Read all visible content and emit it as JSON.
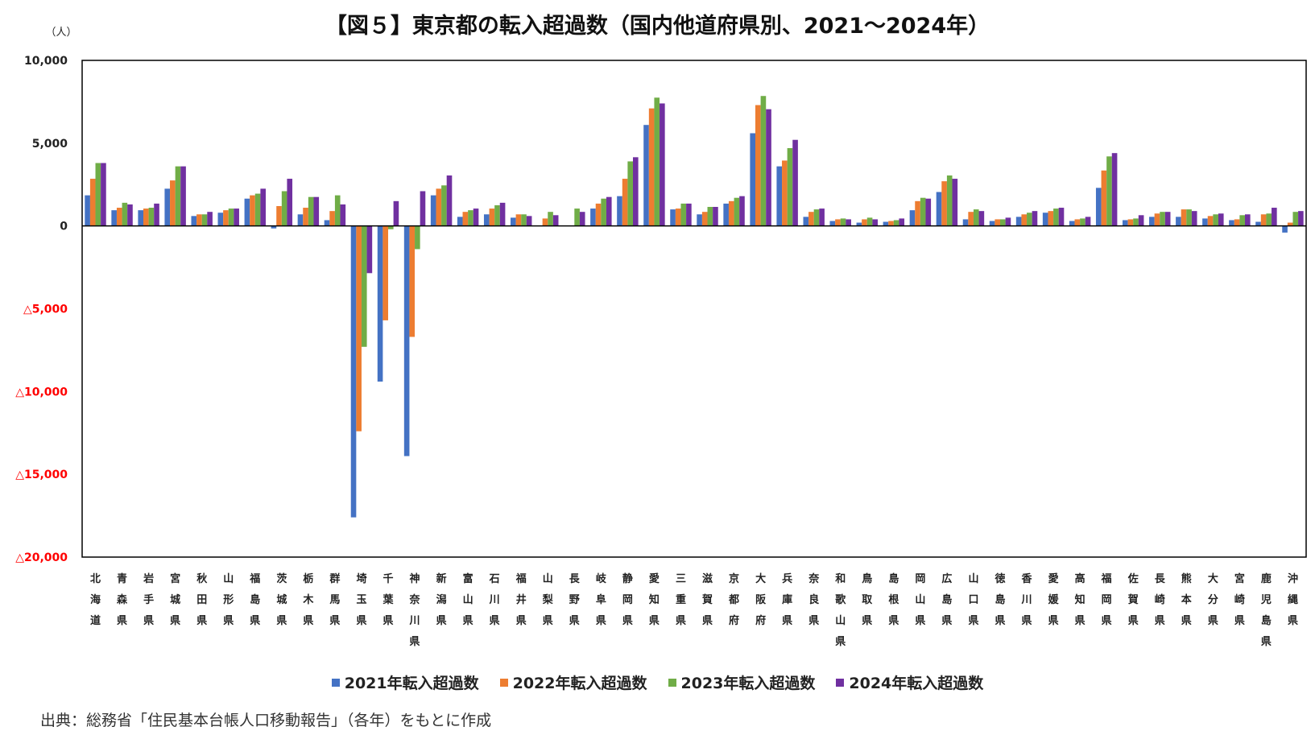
{
  "chart_data": {
    "type": "bar",
    "title": "【図５】東京都の転入超過数（国内他道府県別、2021～2024年）",
    "y_unit": "（人）",
    "ylim": [
      -20000,
      10000
    ],
    "y_ticks": [
      10000,
      5000,
      0,
      -5000,
      -10000,
      -15000,
      -20000
    ],
    "y_tick_labels": [
      "10,000",
      "5,000",
      "0",
      "△5,000",
      "△10,000",
      "△15,000",
      "△20,000"
    ],
    "negative_tick_color": "#ff0000",
    "grid": false,
    "legend_position": "bottom",
    "categories": [
      "北海道",
      "青森県",
      "岩手県",
      "宮城県",
      "秋田県",
      "山形県",
      "福島県",
      "茨城県",
      "栃木県",
      "群馬県",
      "埼玉県",
      "千葉県",
      "神奈川県",
      "新潟県",
      "富山県",
      "石川県",
      "福井県",
      "山梨県",
      "長野県",
      "岐阜県",
      "静岡県",
      "愛知県",
      "三重県",
      "滋賀県",
      "京都府",
      "大阪府",
      "兵庫県",
      "奈良県",
      "和歌山県",
      "鳥取県",
      "島根県",
      "岡山県",
      "広島県",
      "山口県",
      "徳島県",
      "香川県",
      "愛媛県",
      "高知県",
      "福岡県",
      "佐賀県",
      "長崎県",
      "熊本県",
      "大分県",
      "宮崎県",
      "鹿児島県",
      "沖縄県"
    ],
    "series": [
      {
        "name": "2021年転入超過数",
        "color": "#4472c4",
        "values": [
          1850,
          950,
          950,
          2250,
          600,
          800,
          1650,
          -150,
          700,
          350,
          -17600,
          -9400,
          -13900,
          1850,
          550,
          700,
          500,
          0,
          0,
          1050,
          1800,
          6100,
          1000,
          700,
          1350,
          5600,
          3600,
          550,
          300,
          200,
          250,
          950,
          2050,
          400,
          300,
          550,
          800,
          300,
          2300,
          350,
          550,
          550,
          450,
          350,
          250,
          -400
        ]
      },
      {
        "name": "2022年転入超過数",
        "color": "#ed7d31",
        "values": [
          2850,
          1100,
          1050,
          2750,
          700,
          950,
          1850,
          1200,
          1100,
          900,
          -12400,
          -5700,
          -6700,
          2250,
          850,
          1050,
          700,
          450,
          0,
          1350,
          2850,
          7100,
          1050,
          850,
          1500,
          7300,
          3950,
          850,
          400,
          400,
          300,
          1500,
          2700,
          850,
          400,
          700,
          900,
          400,
          3350,
          400,
          750,
          1000,
          600,
          400,
          700,
          200
        ]
      },
      {
        "name": "2023年転入超過数",
        "color": "#70ad47",
        "values": [
          3800,
          1400,
          1100,
          3600,
          700,
          1050,
          1950,
          2100,
          1750,
          1850,
          -7300,
          -200,
          -1400,
          2450,
          950,
          1250,
          700,
          850,
          1050,
          1650,
          3900,
          7750,
          1350,
          1150,
          1700,
          7850,
          4700,
          1000,
          450,
          500,
          350,
          1700,
          3050,
          1000,
          400,
          800,
          1050,
          450,
          4200,
          450,
          850,
          1000,
          700,
          650,
          750,
          850
        ]
      },
      {
        "name": "2024年転入超過数",
        "color": "#7030a0",
        "values": [
          3800,
          1300,
          1350,
          3600,
          850,
          1050,
          2250,
          2850,
          1750,
          1300,
          -2850,
          1500,
          2100,
          3050,
          1050,
          1400,
          600,
          650,
          850,
          1750,
          4150,
          7400,
          1350,
          1150,
          1800,
          7050,
          5200,
          1050,
          400,
          400,
          450,
          1650,
          2850,
          900,
          500,
          900,
          1100,
          550,
          4400,
          650,
          850,
          900,
          750,
          700,
          1100,
          900
        ]
      }
    ]
  },
  "source_note": "出典：総務省「住民基本台帳人口移動報告」（各年）をもとに作成"
}
